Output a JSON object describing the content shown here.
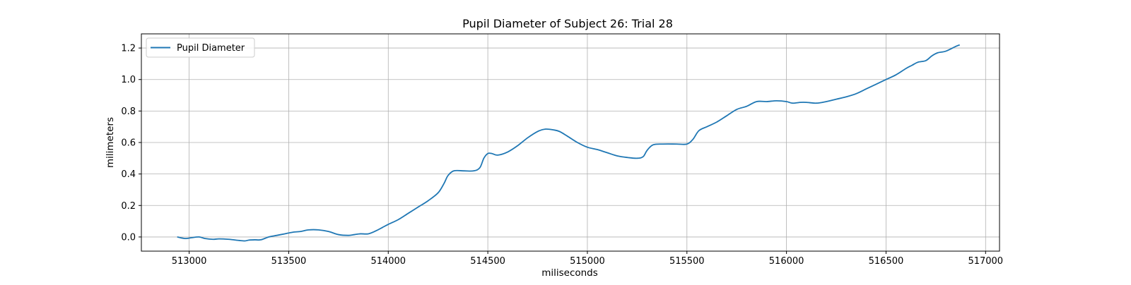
{
  "chart_data": {
    "type": "line",
    "title": "Pupil Diameter of Subject 26: Trial 28",
    "xlabel": "miliseconds",
    "ylabel": "milimeters",
    "xlim": [
      512760,
      517070
    ],
    "ylim": [
      -0.09,
      1.29
    ],
    "xticks": [
      513000,
      513500,
      514000,
      514500,
      515000,
      515500,
      516000,
      516500,
      517000
    ],
    "xtick_labels": [
      "513000",
      "513500",
      "514000",
      "514500",
      "515000",
      "515500",
      "516000",
      "516500",
      "517000"
    ],
    "yticks": [
      0.0,
      0.2,
      0.4,
      0.6,
      0.8,
      1.0,
      1.2
    ],
    "ytick_labels": [
      "0.0",
      "0.2",
      "0.4",
      "0.6",
      "0.8",
      "1.0",
      "1.2"
    ],
    "grid": true,
    "legend_position": "top-left",
    "series": [
      {
        "name": "Pupil Diameter",
        "color": "#1f77b4",
        "x": [
          512940,
          512980,
          513010,
          513050,
          513080,
          513120,
          513150,
          513200,
          513250,
          513280,
          513300,
          513330,
          513360,
          513400,
          513440,
          513480,
          513520,
          513560,
          513600,
          513650,
          513700,
          513750,
          513800,
          513830,
          513860,
          513900,
          513940,
          513970,
          514000,
          514050,
          514100,
          514150,
          514200,
          514250,
          514280,
          514300,
          514330,
          514380,
          514430,
          514460,
          514480,
          514500,
          514520,
          514550,
          514600,
          514650,
          514700,
          514750,
          514790,
          514830,
          514860,
          514900,
          514950,
          515000,
          515050,
          515100,
          515150,
          515200,
          515250,
          515280,
          515300,
          515330,
          515380,
          515450,
          515500,
          515530,
          515560,
          515600,
          515650,
          515700,
          515750,
          515800,
          515850,
          515900,
          515950,
          516000,
          516030,
          516070,
          516100,
          516150,
          516200,
          516250,
          516300,
          516350,
          516400,
          516450,
          516500,
          516550,
          516600,
          516630,
          516660,
          516700,
          516730,
          516760,
          516800,
          516850,
          516870
        ],
        "values": [
          0.0,
          -0.01,
          -0.005,
          0.0,
          -0.01,
          -0.015,
          -0.012,
          -0.015,
          -0.022,
          -0.025,
          -0.02,
          -0.018,
          -0.018,
          0.0,
          0.01,
          0.02,
          0.03,
          0.035,
          0.045,
          0.045,
          0.035,
          0.015,
          0.01,
          0.015,
          0.02,
          0.02,
          0.04,
          0.06,
          0.08,
          0.11,
          0.15,
          0.19,
          0.23,
          0.28,
          0.34,
          0.39,
          0.42,
          0.42,
          0.42,
          0.44,
          0.5,
          0.53,
          0.53,
          0.52,
          0.54,
          0.58,
          0.63,
          0.67,
          0.685,
          0.68,
          0.67,
          0.64,
          0.6,
          0.57,
          0.555,
          0.535,
          0.515,
          0.505,
          0.5,
          0.51,
          0.55,
          0.585,
          0.59,
          0.59,
          0.59,
          0.62,
          0.675,
          0.7,
          0.73,
          0.77,
          0.81,
          0.83,
          0.86,
          0.86,
          0.865,
          0.86,
          0.85,
          0.855,
          0.855,
          0.85,
          0.86,
          0.875,
          0.89,
          0.91,
          0.94,
          0.97,
          1.0,
          1.03,
          1.07,
          1.09,
          1.11,
          1.12,
          1.15,
          1.17,
          1.18,
          1.21,
          1.22
        ]
      }
    ]
  }
}
